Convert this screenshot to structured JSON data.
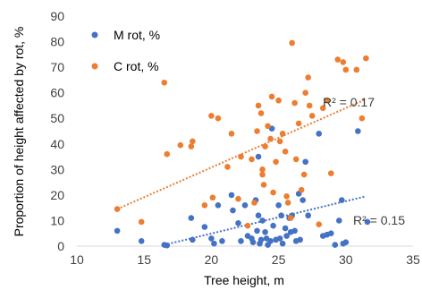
{
  "chart_data": {
    "type": "scatter",
    "xlabel": "Tree height, m",
    "ylabel": "Proportion of height affected by rot, %",
    "xlim": [
      10,
      35
    ],
    "ylim": [
      0,
      90
    ],
    "x_ticks": [
      "10",
      "15",
      "20",
      "25",
      "30",
      "35"
    ],
    "y_ticks": [
      "0",
      "10",
      "20",
      "30",
      "40",
      "50",
      "60",
      "70",
      "80",
      "90"
    ],
    "grid": false,
    "legend_placement": "top-left",
    "series": [
      {
        "name": "M rot, %",
        "color": "#4472C4",
        "trendline": {
          "type": "linear",
          "x": [
            16.5,
            31.5
          ],
          "y": [
            0.5,
            19.5
          ],
          "r2_label": "R² = 0.15"
        },
        "points": [
          [
            13,
            6
          ],
          [
            14.8,
            2
          ],
          [
            16.5,
            0.5
          ],
          [
            16.7,
            0.3
          ],
          [
            18.5,
            11
          ],
          [
            18.6,
            2.5
          ],
          [
            19.5,
            7.5
          ],
          [
            20,
            3
          ],
          [
            20.2,
            1
          ],
          [
            20.5,
            16
          ],
          [
            20.8,
            2
          ],
          [
            21.5,
            20
          ],
          [
            21.6,
            14
          ],
          [
            22,
            9
          ],
          [
            22.2,
            2
          ],
          [
            22.5,
            16
          ],
          [
            22.7,
            4
          ],
          [
            23,
            3
          ],
          [
            23.1,
            1.5
          ],
          [
            23.3,
            18
          ],
          [
            23.4,
            6
          ],
          [
            23.5,
            12
          ],
          [
            23.5,
            35
          ],
          [
            23.6,
            1
          ],
          [
            23.7,
            2.5
          ],
          [
            23.8,
            10
          ],
          [
            24,
            5.5
          ],
          [
            24.1,
            3
          ],
          [
            24.2,
            0.5
          ],
          [
            24.4,
            2
          ],
          [
            24.5,
            46
          ],
          [
            24.6,
            8
          ],
          [
            24.8,
            2.5
          ],
          [
            25,
            16
          ],
          [
            25.1,
            3
          ],
          [
            25.2,
            12
          ],
          [
            25.3,
            1
          ],
          [
            25.5,
            7
          ],
          [
            25.6,
            4
          ],
          [
            25.8,
            11
          ],
          [
            25.9,
            5.5
          ],
          [
            26,
            12
          ],
          [
            26.2,
            6
          ],
          [
            26.3,
            2
          ],
          [
            26.5,
            20.5
          ],
          [
            26.6,
            2.5
          ],
          [
            26.8,
            18
          ],
          [
            27,
            33
          ],
          [
            27.2,
            12
          ],
          [
            28,
            44
          ],
          [
            28.3,
            4
          ],
          [
            28.6,
            4.5
          ],
          [
            28.9,
            5
          ],
          [
            29.2,
            0.5
          ],
          [
            29.5,
            10
          ],
          [
            29.7,
            18
          ],
          [
            29.8,
            1
          ],
          [
            30,
            1.5
          ],
          [
            30.9,
            45
          ],
          [
            31.6,
            9.5
          ]
        ]
      },
      {
        "name": "C rot, %",
        "color": "#ED7D31",
        "trendline": {
          "type": "linear",
          "x": [
            13,
            31.5
          ],
          "y": [
            14.5,
            57.5
          ],
          "r2_label": "R² = 0.17"
        },
        "points": [
          [
            13,
            14.5
          ],
          [
            14.8,
            9.5
          ],
          [
            16.5,
            64
          ],
          [
            16.7,
            36
          ],
          [
            17.7,
            39.5
          ],
          [
            18.5,
            39
          ],
          [
            18.6,
            41
          ],
          [
            19.5,
            16
          ],
          [
            20,
            51
          ],
          [
            20.1,
            19
          ],
          [
            20.5,
            50
          ],
          [
            21.2,
            31
          ],
          [
            21.5,
            44
          ],
          [
            22,
            18.5
          ],
          [
            22.2,
            35
          ],
          [
            22.7,
            8
          ],
          [
            23,
            34
          ],
          [
            23.2,
            17
          ],
          [
            23.4,
            45
          ],
          [
            23.5,
            55
          ],
          [
            23.7,
            52
          ],
          [
            23.8,
            30
          ],
          [
            23.8,
            28
          ],
          [
            23.9,
            24
          ],
          [
            24,
            39
          ],
          [
            24.2,
            47
          ],
          [
            24.4,
            42
          ],
          [
            24.5,
            58.5
          ],
          [
            24.6,
            21
          ],
          [
            24.8,
            33
          ],
          [
            25,
            57
          ],
          [
            25.1,
            41
          ],
          [
            25.3,
            44
          ],
          [
            25.5,
            37
          ],
          [
            25.6,
            19.5
          ],
          [
            25.7,
            17
          ],
          [
            25.9,
            11
          ],
          [
            26,
            79.5
          ],
          [
            26.2,
            56
          ],
          [
            26.3,
            34
          ],
          [
            26.5,
            48
          ],
          [
            26.7,
            22
          ],
          [
            26.9,
            28
          ],
          [
            27,
            60
          ],
          [
            27.2,
            66
          ],
          [
            27.3,
            55
          ],
          [
            27.5,
            51
          ],
          [
            28,
            8.5
          ],
          [
            28.3,
            54
          ],
          [
            28.6,
            57
          ],
          [
            28.9,
            28.5
          ],
          [
            29.4,
            73
          ],
          [
            29.8,
            72
          ],
          [
            30,
            69
          ],
          [
            30.8,
            69
          ],
          [
            31.2,
            50
          ],
          [
            31.5,
            73.5
          ]
        ]
      }
    ]
  }
}
